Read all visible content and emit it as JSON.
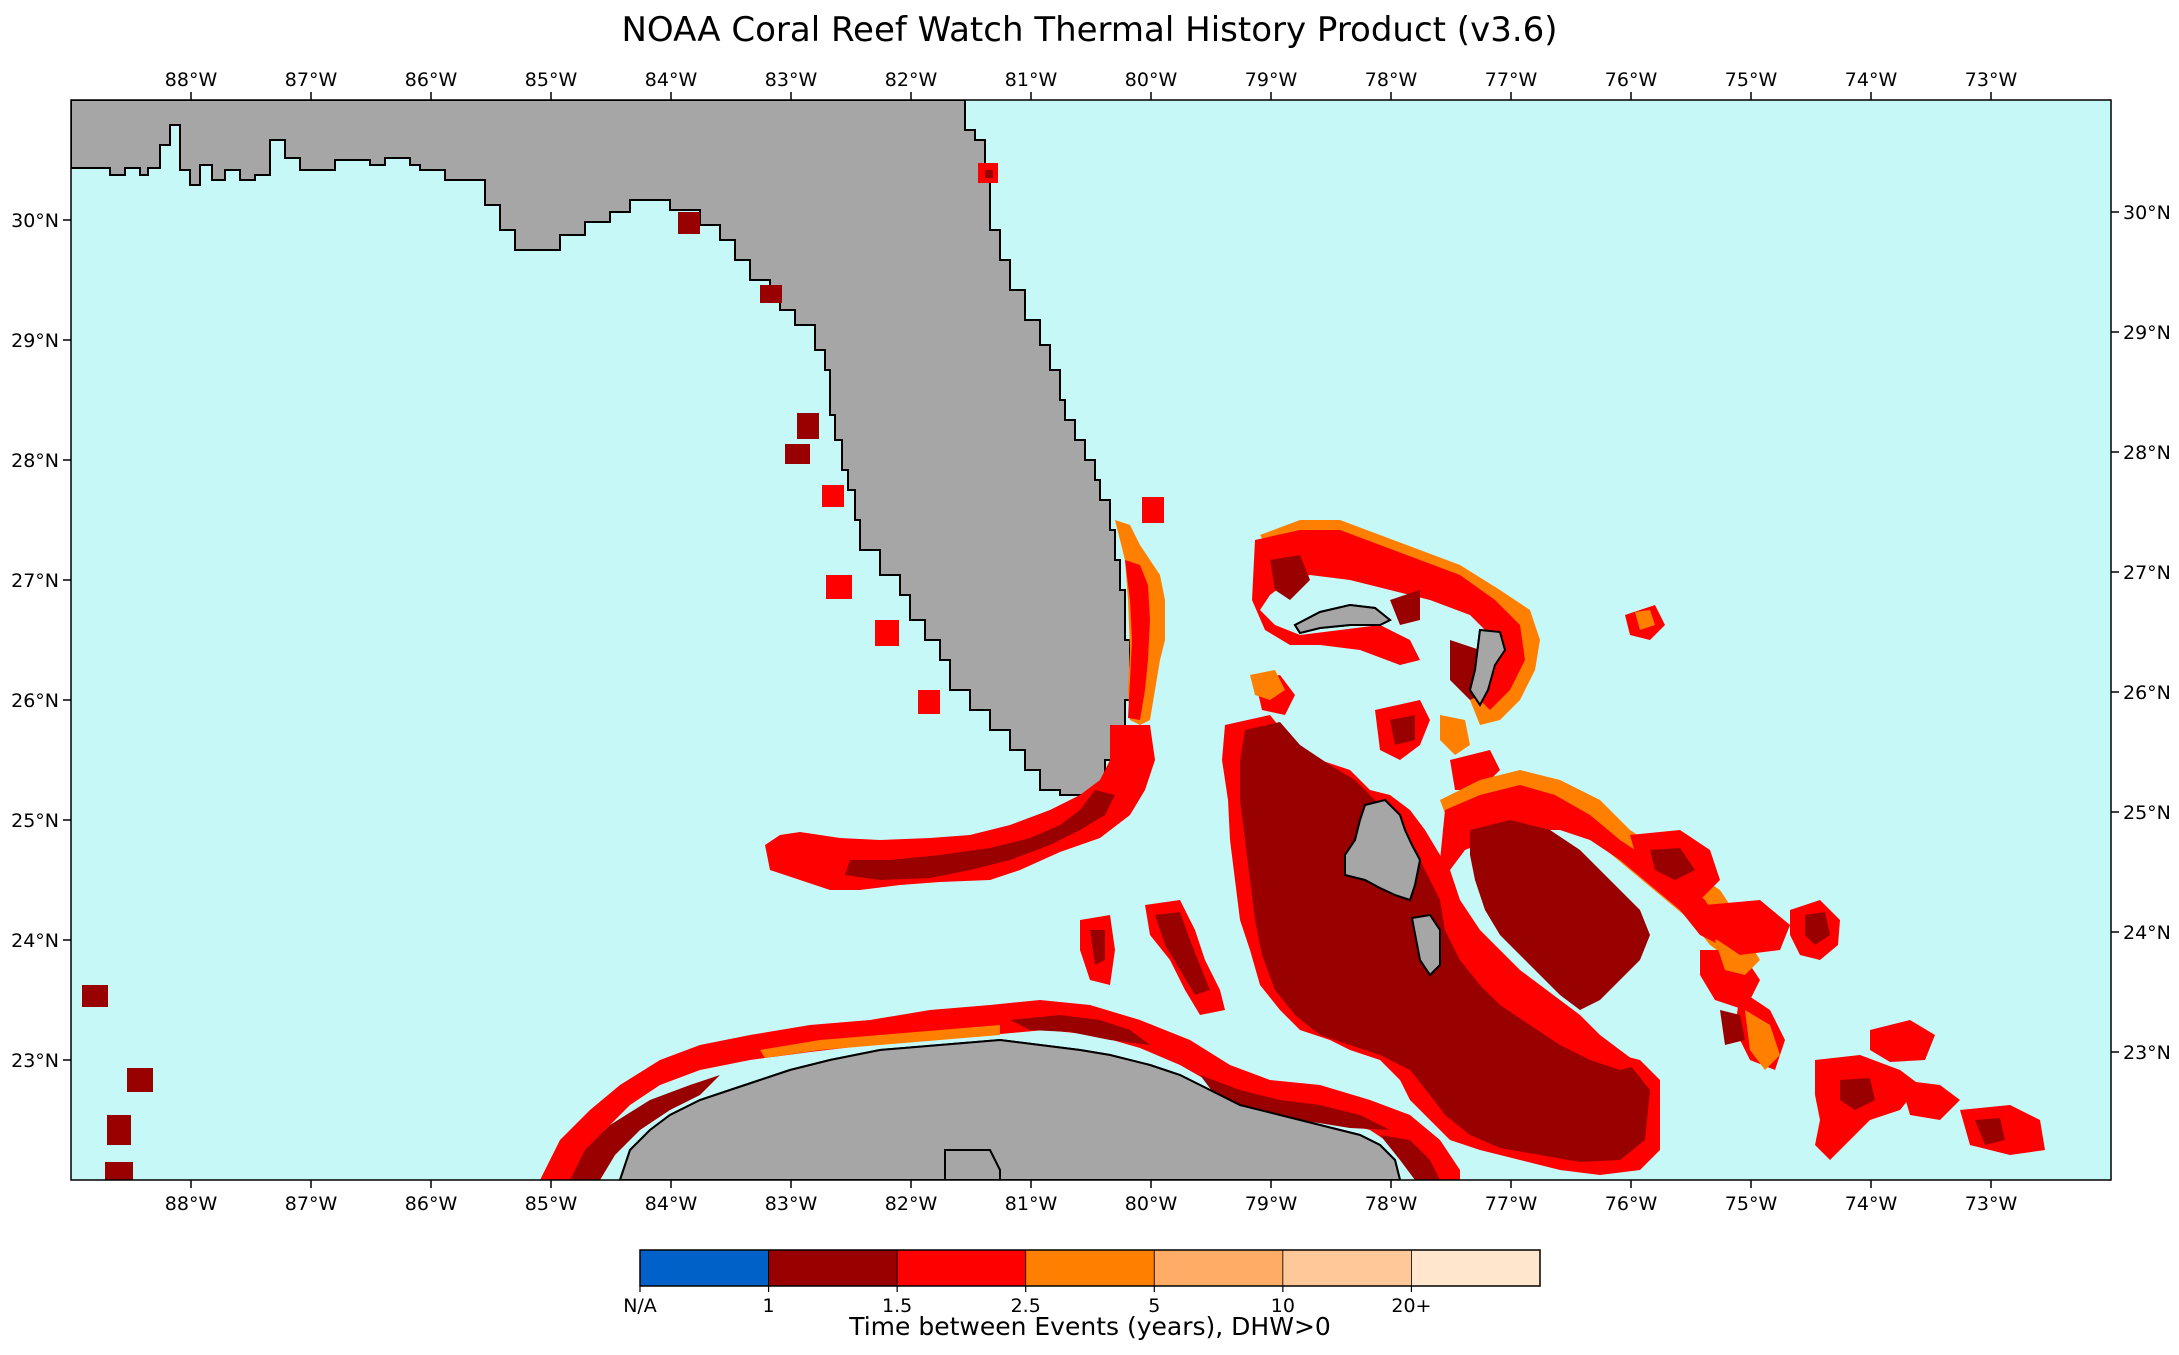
{
  "title": "NOAA Coral Reef Watch Thermal History Product (v3.6)",
  "map": {
    "lon_range": [
      -89.0,
      -72.0
    ],
    "lat_range": [
      22.0,
      31.0
    ],
    "lon_ticks": [
      "88°W",
      "87°W",
      "86°W",
      "85°W",
      "84°W",
      "83°W",
      "82°W",
      "81°W",
      "80°W",
      "79°W",
      "78°W",
      "77°W",
      "76°W",
      "75°W",
      "74°W",
      "73°W"
    ],
    "lat_ticks": [
      "23°N",
      "24°N",
      "25°N",
      "26°N",
      "27°N",
      "28°N",
      "29°N",
      "30°N"
    ],
    "colors": {
      "ocean": "#c6f8f8",
      "land": "#a6a6a6",
      "coast": "#000000"
    }
  },
  "colorbar": {
    "label": "Time between Events (years), DHW>0",
    "bins": [
      {
        "color": "#0062c8"
      },
      {
        "color": "#990000"
      },
      {
        "color": "#ff0000"
      },
      {
        "color": "#ff8000"
      },
      {
        "color": "#ffad66"
      },
      {
        "color": "#ffc899"
      },
      {
        "color": "#ffe6cc"
      }
    ],
    "tick_labels": [
      "N/A",
      "1",
      "1.5",
      "2.5",
      "5",
      "10",
      "20+"
    ]
  }
}
